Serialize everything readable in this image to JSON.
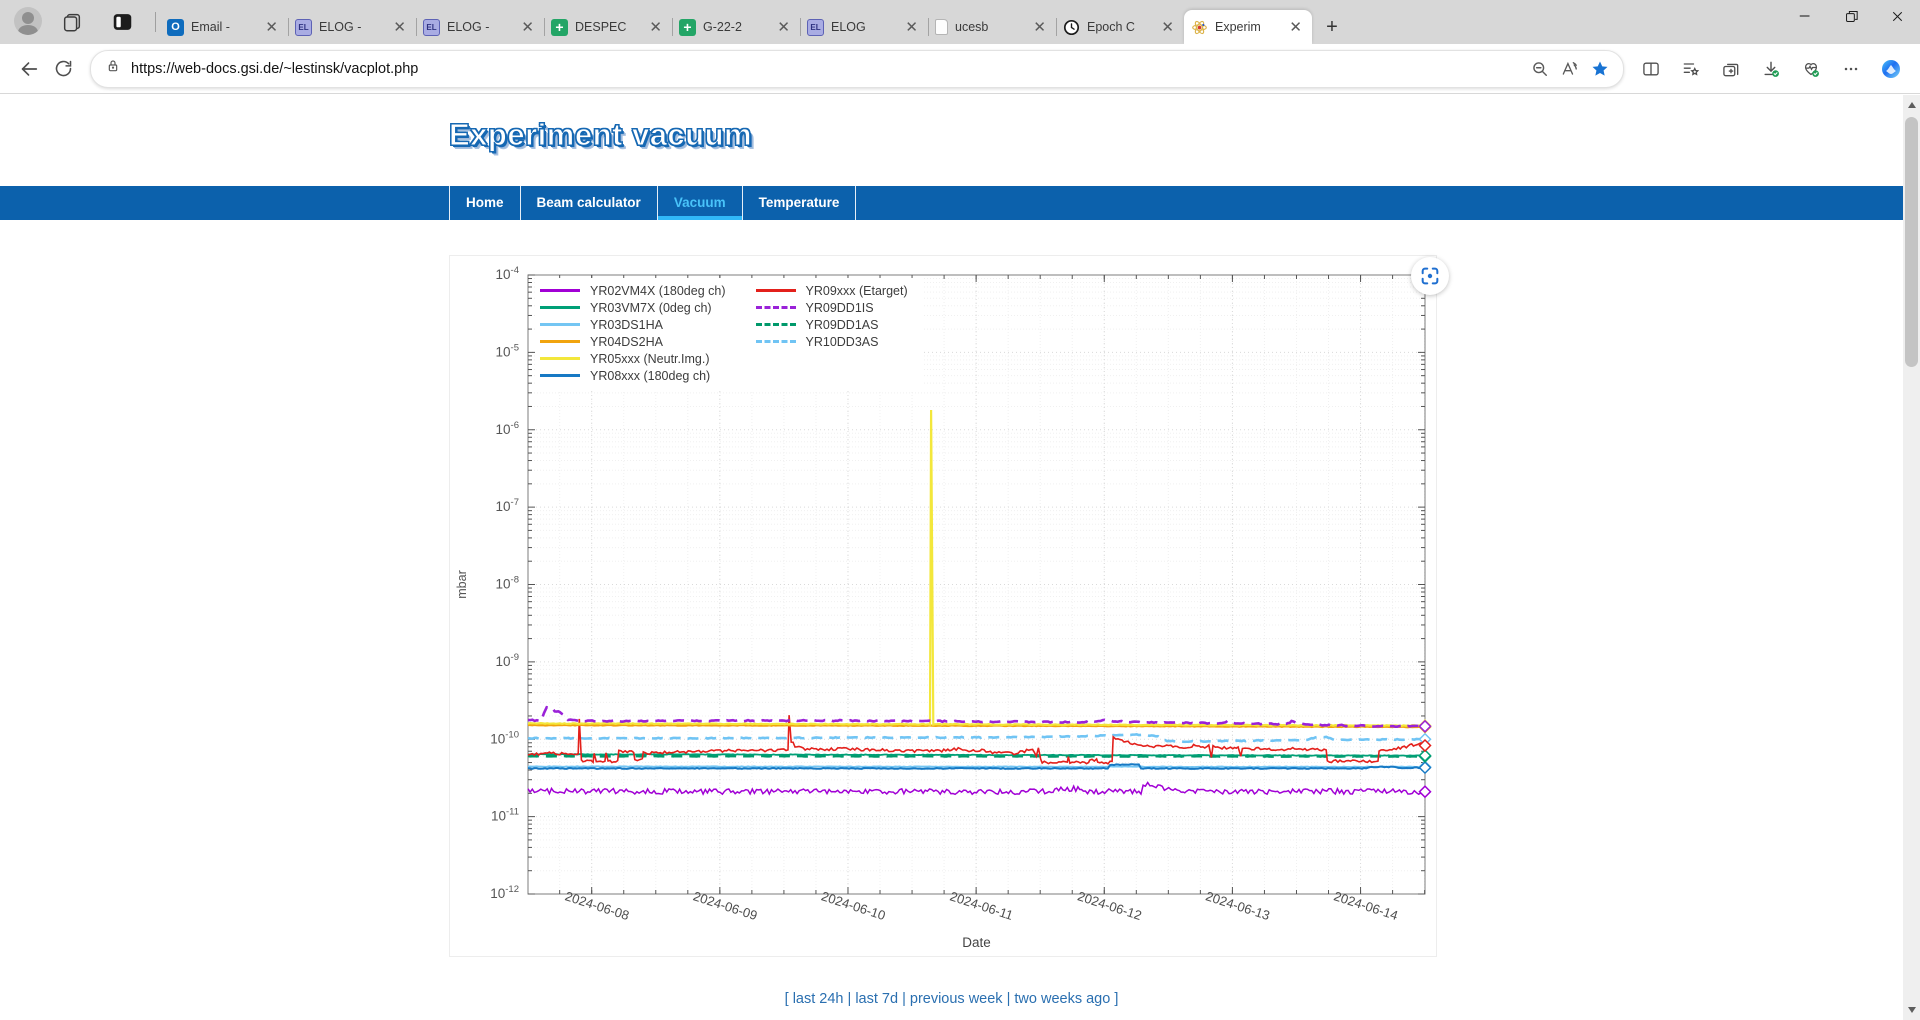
{
  "browser": {
    "tabs": [
      {
        "icon": "outlook",
        "label": "Email -"
      },
      {
        "icon": "elog",
        "label": "ELOG -"
      },
      {
        "icon": "elog",
        "label": "ELOG -"
      },
      {
        "icon": "sheets",
        "label": "DESPEC"
      },
      {
        "icon": "sheets",
        "label": "G-22-2"
      },
      {
        "icon": "elog",
        "label": "ELOG"
      },
      {
        "icon": "file",
        "label": "ucesb"
      },
      {
        "icon": "clock",
        "label": "Epoch C"
      },
      {
        "icon": "atom",
        "label": "Experim",
        "active": true
      }
    ],
    "url": "https://web-docs.gsi.de/~lestinsk/vacplot.php",
    "address_icons": [
      "zoom-out",
      "read-aloud",
      "favorite-star"
    ],
    "toolbar_icons": [
      "split-screen",
      "favorites",
      "collections",
      "downloads",
      "browser-essentials",
      "settings-ellipsis",
      "copilot"
    ]
  },
  "page": {
    "title": "Experiment vacuum",
    "nav": {
      "items": [
        {
          "label": "Home",
          "active": false
        },
        {
          "label": "Beam calculator",
          "active": false
        },
        {
          "label": "Vacuum",
          "active": true
        },
        {
          "label": "Temperature",
          "active": false
        }
      ]
    },
    "footer": {
      "open": "[",
      "close": "]",
      "separator": "|",
      "links": [
        "last 24h",
        "last 7d",
        "previous week",
        "two weeks ago"
      ]
    }
  },
  "chart_data": {
    "type": "line",
    "xlabel": "Date",
    "ylabel": "mbar",
    "right_timestamp": "2024-06-14T12:04:01Z",
    "x_unit": "hours since 2024-06-07T12:04Z",
    "x_range_hours": [
      0,
      168
    ],
    "ylim": [
      1e-12,
      0.0001
    ],
    "y_ticks_exp": [
      -4,
      -5,
      -6,
      -7,
      -8,
      -9,
      -10,
      -11,
      -12
    ],
    "x_minor_step_hours": 6,
    "x_minor_offset": 5.93,
    "legend_split": 6,
    "x_ticks": [
      {
        "t": 11.93,
        "label": "2024-06-08"
      },
      {
        "t": 35.93,
        "label": "2024-06-09"
      },
      {
        "t": 59.93,
        "label": "2024-06-10"
      },
      {
        "t": 83.93,
        "label": "2024-06-11"
      },
      {
        "t": 107.93,
        "label": "2024-06-12"
      },
      {
        "t": 131.93,
        "label": "2024-06-13"
      },
      {
        "t": 155.93,
        "label": "2024-06-14"
      }
    ],
    "series": [
      {
        "name": "YR02VM4X (180deg ch)",
        "color": "#a100d5",
        "dash": false,
        "width": 1.5,
        "z": 10,
        "jitter": 0.035,
        "end_marker": true,
        "points": [
          [
            0,
            2.15e-11
          ],
          [
            20,
            2.12e-11
          ],
          [
            40,
            2.1e-11
          ],
          [
            60,
            2.12e-11
          ],
          [
            80,
            2.1e-11
          ],
          [
            98,
            2.1e-11
          ],
          [
            99,
            2.3e-11
          ],
          [
            103,
            2.28e-11
          ],
          [
            104,
            2.12e-11
          ],
          [
            114.8,
            2.1e-11
          ],
          [
            115.2,
            2.55e-11
          ],
          [
            116.5,
            2.65e-11
          ],
          [
            118,
            2.4e-11
          ],
          [
            120,
            2.32e-11
          ],
          [
            122,
            2.18e-11
          ],
          [
            123,
            2.12e-11
          ],
          [
            140,
            2.1e-11
          ],
          [
            150,
            2.12e-11
          ],
          [
            160,
            2.1e-11
          ],
          [
            168,
            2.1e-11
          ]
        ]
      },
      {
        "name": "YR03VM7X (0deg ch)",
        "color": "#00a077",
        "dash": false,
        "width": 1.8,
        "z": 5,
        "jitter": 0.004,
        "end_marker": true,
        "points": [
          [
            0,
            6.4e-11
          ],
          [
            168,
            6.15e-11
          ]
        ]
      },
      {
        "name": "YR03DS1HA",
        "color": "#74c6f3",
        "dash": false,
        "width": 1.8,
        "z": 1,
        "jitter": 0.004,
        "end_marker": true,
        "points": [
          [
            0,
            4.45e-11
          ],
          [
            168,
            4.4e-11
          ]
        ]
      },
      {
        "name": "YR04DS2HA",
        "color": "#f1a40e",
        "dash": false,
        "width": 2.2,
        "z": 7,
        "jitter": 0.004,
        "end_marker": true,
        "points": [
          [
            0,
            1.52e-10
          ],
          [
            80,
            1.5e-10
          ],
          [
            168,
            1.44e-10
          ]
        ]
      },
      {
        "name": "YR05xxx (Neutr.Img.)",
        "color": "#f3e73b",
        "dash": false,
        "width": 2.2,
        "z": 8,
        "jitter": 0.005,
        "end_marker": true,
        "points": [
          [
            0,
            1.6e-10
          ],
          [
            75.3,
            1.56e-10
          ],
          [
            75.5,
            1.8e-06
          ],
          [
            75.9,
            1.56e-10
          ],
          [
            120,
            1.53e-10
          ],
          [
            168,
            1.5e-10
          ]
        ]
      },
      {
        "name": "YR08xxx (180deg ch)",
        "color": "#1779c4",
        "dash": false,
        "width": 2,
        "z": 2,
        "jitter": 0.006,
        "end_marker": true,
        "points": [
          [
            0,
            4.2e-11
          ],
          [
            108.6,
            4.2e-11
          ],
          [
            109,
            4.7e-11
          ],
          [
            114.4,
            4.7e-11
          ],
          [
            114.8,
            4.2e-11
          ],
          [
            157,
            4.2e-11
          ],
          [
            158,
            4.4e-11
          ],
          [
            162,
            4.4e-11
          ],
          [
            163,
            4.25e-11
          ],
          [
            168,
            4.3e-11
          ]
        ]
      },
      {
        "name": "YR09xxx (Etarget)",
        "color": "#e3201b",
        "dash": false,
        "width": 1.6,
        "z": 6,
        "jitter": 0.018,
        "end_marker": true,
        "points": [
          [
            0,
            6.4e-11
          ],
          [
            4,
            6.6e-11
          ],
          [
            9.4,
            6.4e-11
          ],
          [
            9.6,
            1.9e-10
          ],
          [
            10,
            5.6e-11
          ],
          [
            10.3,
            5.2e-11
          ],
          [
            12.2,
            5.2e-11
          ],
          [
            12.4,
            6.4e-11
          ],
          [
            12.8,
            5.2e-11
          ],
          [
            14.4,
            5.2e-11
          ],
          [
            14.6,
            6.4e-11
          ],
          [
            15,
            5.2e-11
          ],
          [
            16.8,
            5.2e-11
          ],
          [
            17,
            6.9e-11
          ],
          [
            19.8,
            6.9e-11
          ],
          [
            20,
            5.4e-11
          ],
          [
            21.4,
            5.4e-11
          ],
          [
            21.6,
            6.6e-11
          ],
          [
            26,
            6.8e-11
          ],
          [
            32,
            7e-11
          ],
          [
            38,
            7.1e-11
          ],
          [
            44,
            7.2e-11
          ],
          [
            48.7,
            7.2e-11
          ],
          [
            48.9,
            2.1e-10
          ],
          [
            49.3,
            9.5e-11
          ],
          [
            50,
            8.2e-11
          ],
          [
            51.5,
            7.5e-11
          ],
          [
            56,
            7.4e-11
          ],
          [
            60,
            7.5e-11
          ],
          [
            64,
            7.3e-11
          ],
          [
            68,
            7.2e-11
          ],
          [
            72,
            7.1e-11
          ],
          [
            76,
            7e-11
          ],
          [
            79,
            7.3e-11
          ],
          [
            81,
            7.6e-11
          ],
          [
            83,
            7e-11
          ],
          [
            85,
            7.2e-11
          ],
          [
            87,
            6.8e-11
          ],
          [
            89,
            7e-11
          ],
          [
            91,
            6.6e-11
          ],
          [
            93,
            7e-11
          ],
          [
            94.5,
            7.6e-11
          ],
          [
            95.2,
            6e-11
          ],
          [
            95.6,
            7.8e-11
          ],
          [
            96,
            5.4e-11
          ],
          [
            96.3,
            5e-11
          ],
          [
            101,
            5e-11
          ],
          [
            101.2,
            5.8e-11
          ],
          [
            101.5,
            5e-11
          ],
          [
            105,
            5e-11
          ],
          [
            105.2,
            5.4e-11
          ],
          [
            106.5,
            5.4e-11
          ],
          [
            106.7,
            5e-11
          ],
          [
            109.4,
            5e-11
          ],
          [
            109.6,
            1.05e-10
          ],
          [
            110.5,
            9.8e-11
          ],
          [
            112,
            9.2e-11
          ],
          [
            114,
            8.6e-11
          ],
          [
            116,
            8.2e-11
          ],
          [
            118,
            8e-11
          ],
          [
            120,
            8.2e-11
          ],
          [
            122,
            7.8e-11
          ],
          [
            124,
            8e-11
          ],
          [
            125,
            8.4e-11
          ],
          [
            126,
            7.8e-11
          ],
          [
            127.5,
            8.2e-11
          ],
          [
            128,
            6e-11
          ],
          [
            128.3,
            8e-11
          ],
          [
            130,
            7.8e-11
          ],
          [
            132,
            7.6e-11
          ],
          [
            133,
            8e-11
          ],
          [
            133.5,
            6e-11
          ],
          [
            133.8,
            7.6e-11
          ],
          [
            136,
            7.6e-11
          ],
          [
            140,
            7.4e-11
          ],
          [
            144,
            7.5e-11
          ],
          [
            147,
            7.3e-11
          ],
          [
            149.5,
            7.2e-11
          ],
          [
            149.7,
            5.2e-11
          ],
          [
            159.2,
            5.2e-11
          ],
          [
            159.4,
            7.2e-11
          ],
          [
            161,
            7.3e-11
          ],
          [
            163,
            7.6e-11
          ],
          [
            164.5,
            8e-11
          ],
          [
            165.5,
            8.4e-11
          ],
          [
            166.5,
            8.2e-11
          ],
          [
            167.2,
            8.6e-11
          ],
          [
            168,
            8.3e-11
          ]
        ]
      },
      {
        "name": "YR09DD1IS",
        "color": "#9a22d8",
        "dash": true,
        "width": 2.6,
        "z": 9,
        "jitter": 0.008,
        "end_marker": true,
        "points": [
          [
            0,
            1.78e-10
          ],
          [
            2.5,
            1.72e-10
          ],
          [
            3,
            2.2e-10
          ],
          [
            3.5,
            2.6e-10
          ],
          [
            4.5,
            2.55e-10
          ],
          [
            5,
            2.3e-10
          ],
          [
            6,
            2.25e-10
          ],
          [
            7,
            2e-10
          ],
          [
            7.5,
            1.78e-10
          ],
          [
            10,
            1.72e-10
          ],
          [
            20,
            1.72e-10
          ],
          [
            40,
            1.74e-10
          ],
          [
            60,
            1.74e-10
          ],
          [
            80,
            1.7e-10
          ],
          [
            95,
            1.68e-10
          ],
          [
            105,
            1.66e-10
          ],
          [
            108,
            1.78e-10
          ],
          [
            110,
            1.7e-10
          ],
          [
            118,
            1.65e-10
          ],
          [
            126,
            1.62e-10
          ],
          [
            130,
            1.6e-10
          ],
          [
            131,
            1.72e-10
          ],
          [
            132.5,
            1.6e-10
          ],
          [
            138,
            1.58e-10
          ],
          [
            142,
            1.56e-10
          ],
          [
            143,
            1.7e-10
          ],
          [
            144.5,
            1.58e-10
          ],
          [
            150,
            1.52e-10
          ],
          [
            158,
            1.48e-10
          ],
          [
            168,
            1.47e-10
          ]
        ]
      },
      {
        "name": "YR09DD1AS",
        "color": "#00996b",
        "dash": true,
        "width": 2.6,
        "z": 4,
        "jitter": 0.003,
        "end_marker": true,
        "points": [
          [
            0,
            6.05e-11
          ],
          [
            168,
            6e-11
          ]
        ]
      },
      {
        "name": "YR10DD3AS",
        "color": "#70c4f4",
        "dash": true,
        "width": 2.6,
        "z": 3,
        "jitter": 0.006,
        "end_marker": true,
        "points": [
          [
            0,
            1.03e-10
          ],
          [
            30,
            1.03e-10
          ],
          [
            60,
            1.05e-10
          ],
          [
            90,
            1.06e-10
          ],
          [
            100,
            1.08e-10
          ],
          [
            110,
            1.12e-10
          ],
          [
            114,
            1.15e-10
          ],
          [
            118,
            1.1e-10
          ],
          [
            119,
            9.8e-11
          ],
          [
            120,
            9.4e-11
          ],
          [
            126,
            9.4e-11
          ],
          [
            134,
            9.6e-11
          ],
          [
            142,
            9.7e-11
          ],
          [
            146,
            9.8e-11
          ],
          [
            147.5,
            1.06e-10
          ],
          [
            149.5,
            1.08e-10
          ],
          [
            151,
            9.8e-11
          ],
          [
            160,
            9.9e-11
          ],
          [
            168,
            1e-10
          ]
        ]
      }
    ]
  }
}
